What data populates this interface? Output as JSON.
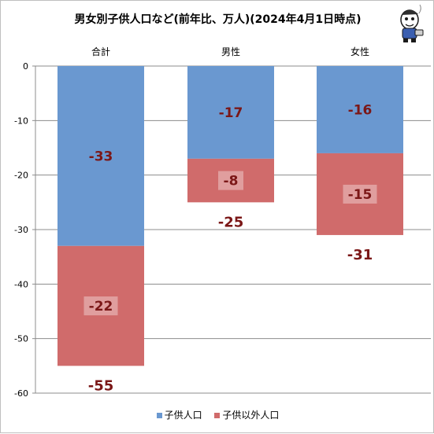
{
  "chart_data": {
    "type": "bar",
    "stacked": true,
    "title": "男女別子供人口など(前年比、万人)(2024年4月1日時点)",
    "categories": [
      "合計",
      "男性",
      "女性"
    ],
    "series": [
      {
        "name": "子供人口",
        "values": [
          -33,
          -17,
          -16
        ],
        "color": "#6a98d0"
      },
      {
        "name": "子供以外人口",
        "values": [
          -22,
          -8,
          -15
        ],
        "color": "#d06b6b"
      }
    ],
    "totals": [
      -55,
      -25,
      -31
    ],
    "ylim": [
      -60,
      0
    ],
    "yticks": [
      0,
      -10,
      -20,
      -30,
      -40,
      -50,
      -60
    ],
    "grid": true,
    "legend_position": "bottom",
    "label_color": "#7b1717"
  },
  "logo": {
    "icon": "cartoon-mascot-icon"
  }
}
